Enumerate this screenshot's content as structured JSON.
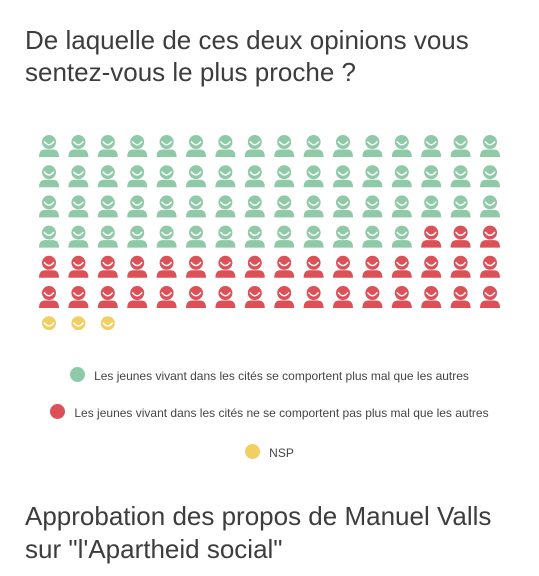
{
  "header": {
    "title": "De laquelle de ces deux opinions vous sentez-vous le plus proche ?"
  },
  "chart_data": {
    "type": "pictogram",
    "title": "De laquelle de ces deux opinions vous sentez-vous le plus proche ?",
    "icon": "person-icon",
    "columns": 16,
    "series": [
      {
        "name": "Les jeunes vivant dans les cités se comportent plus mal que les autres",
        "value": 61,
        "color": "#8fc9a8"
      },
      {
        "name": "Les jeunes vivant dans les cités ne se comportent pas plus mal que les autres",
        "value": 35,
        "color": "#dc5058"
      },
      {
        "name": "NSP",
        "value": 3,
        "color": "#f2cf63"
      }
    ],
    "legend_position": "bottom"
  },
  "footer": {
    "next_title": "Approbation des propos de Manuel Valls sur \"l'Apartheid social\""
  }
}
